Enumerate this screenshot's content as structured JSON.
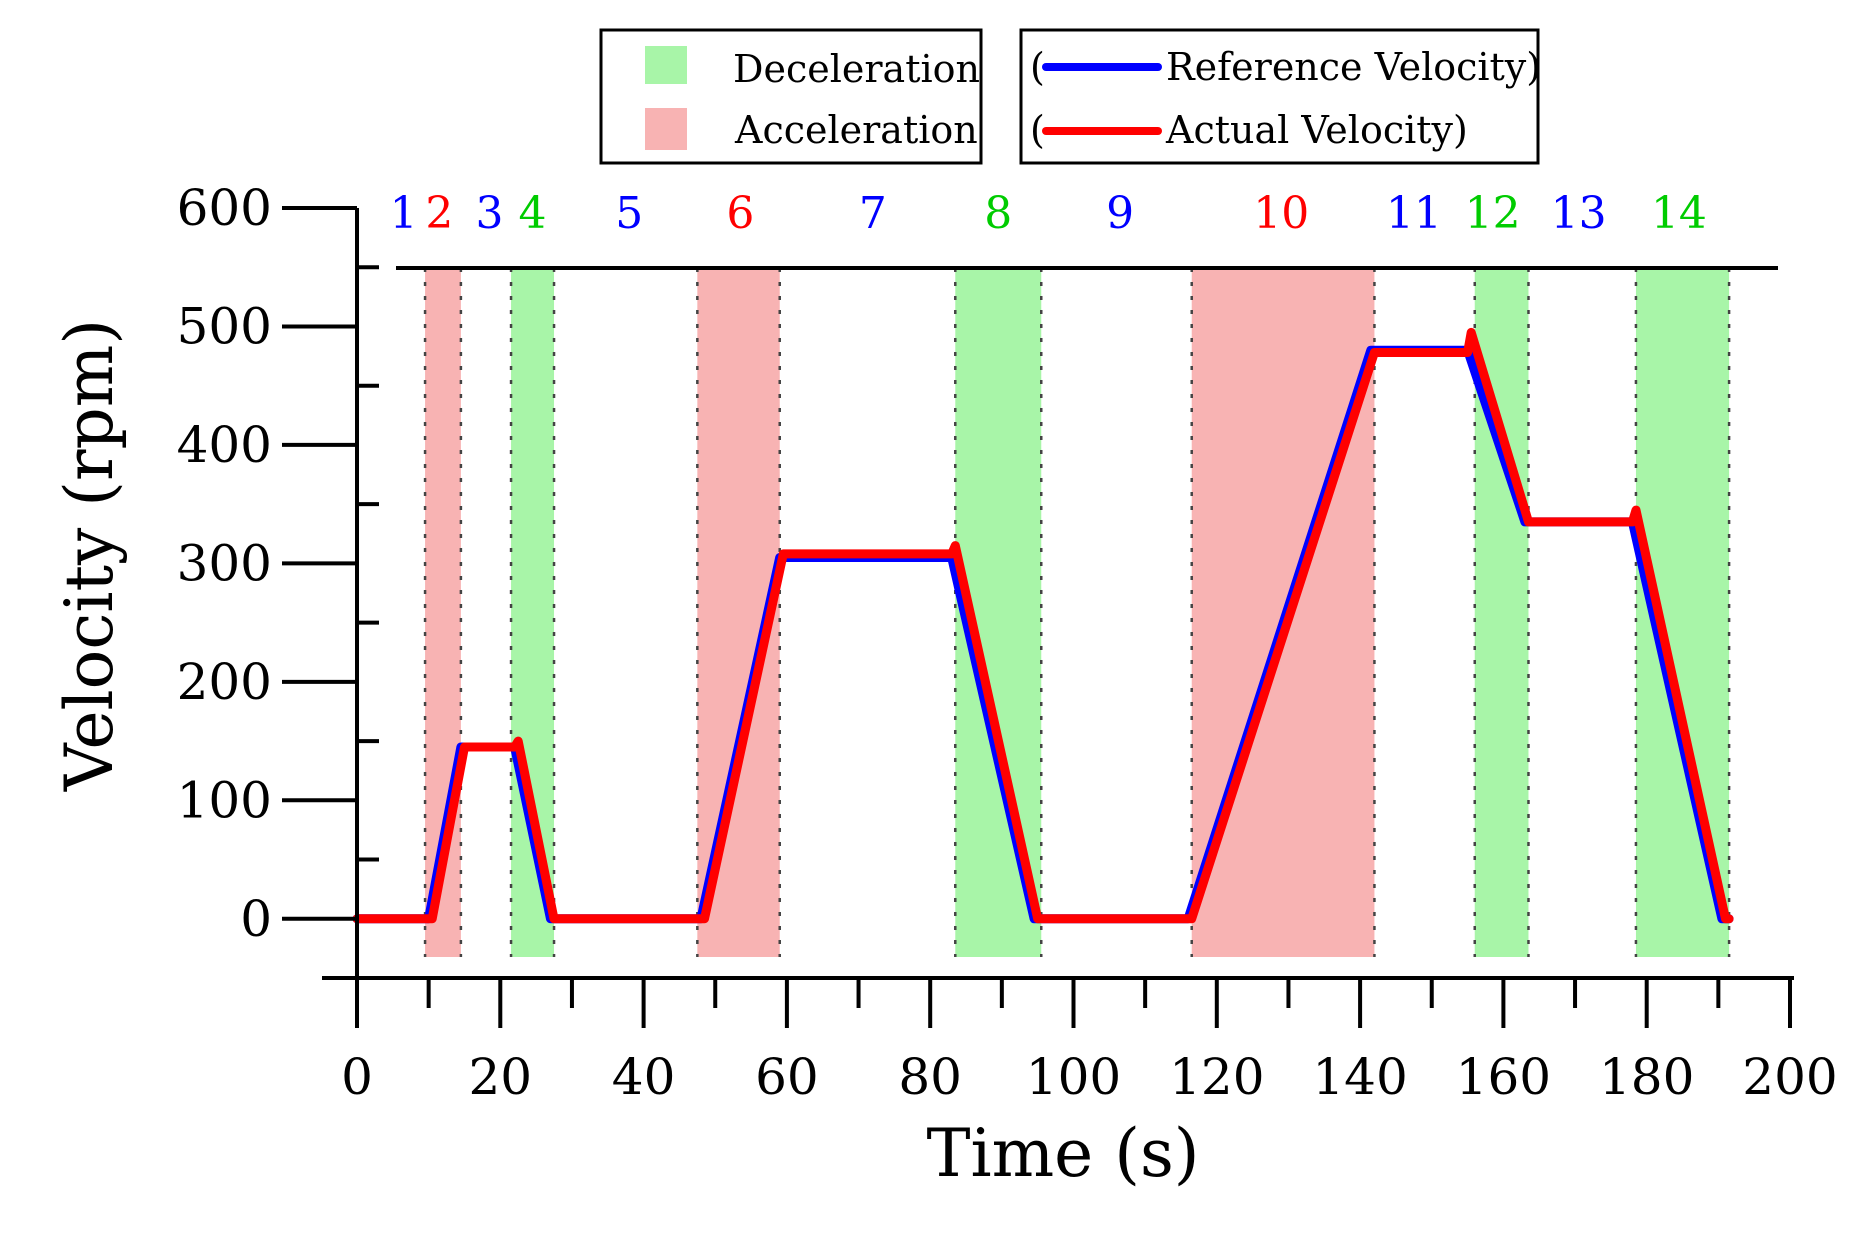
{
  "chart_data": {
    "type": "line",
    "title": "",
    "xlabel": "Time (s)",
    "ylabel": "Velocity (rpm)",
    "xlim": [
      0,
      200
    ],
    "ylim": [
      -50,
      600
    ],
    "xticks": [
      0,
      20,
      40,
      60,
      80,
      100,
      120,
      140,
      160,
      180,
      200
    ],
    "yticks": [
      0,
      100,
      200,
      300,
      400,
      500,
      600
    ],
    "grid": false,
    "legend_position": "top",
    "legends": {
      "regions": [
        {
          "name": "Deceleration",
          "color": "#a8f5a8"
        },
        {
          "name": "Acceleration",
          "color": "#f8b3b3"
        }
      ],
      "series": [
        {
          "prefix": "(",
          "name": "Reference Velocity)",
          "color": "#0000ff"
        },
        {
          "prefix": "(",
          "name": "Actual Velocity)",
          "color": "#ff0000"
        }
      ]
    },
    "phase_boundaries": [
      9.5,
      14.5,
      21.5,
      27.5,
      47.5,
      59,
      83.5,
      95.5,
      116.5,
      142,
      156,
      163.5,
      178.5,
      191.5
    ],
    "regions": [
      {
        "type": "Acceleration",
        "x0": 9.5,
        "x1": 14.5
      },
      {
        "type": "Deceleration",
        "x0": 21.5,
        "x1": 27.5
      },
      {
        "type": "Acceleration",
        "x0": 47.5,
        "x1": 59
      },
      {
        "type": "Deceleration",
        "x0": 83.5,
        "x1": 95.5
      },
      {
        "type": "Acceleration",
        "x0": 116.5,
        "x1": 142
      },
      {
        "type": "Deceleration",
        "x0": 156,
        "x1": 163.5
      },
      {
        "type": "Deceleration",
        "x0": 178.5,
        "x1": 191.5
      }
    ],
    "phase_labels": [
      {
        "label": "1",
        "x": 6.5,
        "color": "#0000ff"
      },
      {
        "label": "2",
        "x": 11.5,
        "color": "#ff0000"
      },
      {
        "label": "3",
        "x": 18.5,
        "color": "#0000ff"
      },
      {
        "label": "4",
        "x": 24.5,
        "color": "#00cc00"
      },
      {
        "label": "5",
        "x": 38,
        "color": "#0000ff"
      },
      {
        "label": "6",
        "x": 53.5,
        "color": "#ff0000"
      },
      {
        "label": "7",
        "x": 72,
        "color": "#0000ff"
      },
      {
        "label": "8",
        "x": 89.5,
        "color": "#00cc00"
      },
      {
        "label": "9",
        "x": 106.5,
        "color": "#0000ff"
      },
      {
        "label": "10",
        "x": 129,
        "color": "#ff0000"
      },
      {
        "label": "11",
        "x": 147.5,
        "color": "#0000ff"
      },
      {
        "label": "12",
        "x": 158.5,
        "color": "#00cc00"
      },
      {
        "label": "13",
        "x": 170.5,
        "color": "#0000ff"
      },
      {
        "label": "14",
        "x": 184.5,
        "color": "#00cc00"
      }
    ],
    "series": [
      {
        "name": "Reference Velocity",
        "color": "#0000ff",
        "points": [
          [
            0,
            0
          ],
          [
            10,
            0
          ],
          [
            14.5,
            145
          ],
          [
            22,
            145
          ],
          [
            27,
            0
          ],
          [
            48,
            0
          ],
          [
            59,
            305
          ],
          [
            83,
            305
          ],
          [
            94.5,
            0
          ],
          [
            116,
            0
          ],
          [
            141.5,
            480
          ],
          [
            155,
            480
          ],
          [
            163,
            335
          ],
          [
            178,
            335
          ],
          [
            190.5,
            0
          ],
          [
            191.5,
            0
          ]
        ]
      },
      {
        "name": "Actual Velocity",
        "color": "#ff0000",
        "points": [
          [
            0,
            0
          ],
          [
            10.5,
            0
          ],
          [
            15,
            145
          ],
          [
            22,
            145
          ],
          [
            22.5,
            150
          ],
          [
            27.5,
            0
          ],
          [
            48.5,
            0
          ],
          [
            59.5,
            308
          ],
          [
            83,
            308
          ],
          [
            83.5,
            315
          ],
          [
            95,
            0
          ],
          [
            116.5,
            0
          ],
          [
            142,
            478
          ],
          [
            155,
            478
          ],
          [
            155.5,
            495
          ],
          [
            163.5,
            335
          ],
          [
            178,
            335
          ],
          [
            178.5,
            345
          ],
          [
            191,
            0
          ],
          [
            191.5,
            0
          ]
        ]
      }
    ]
  }
}
